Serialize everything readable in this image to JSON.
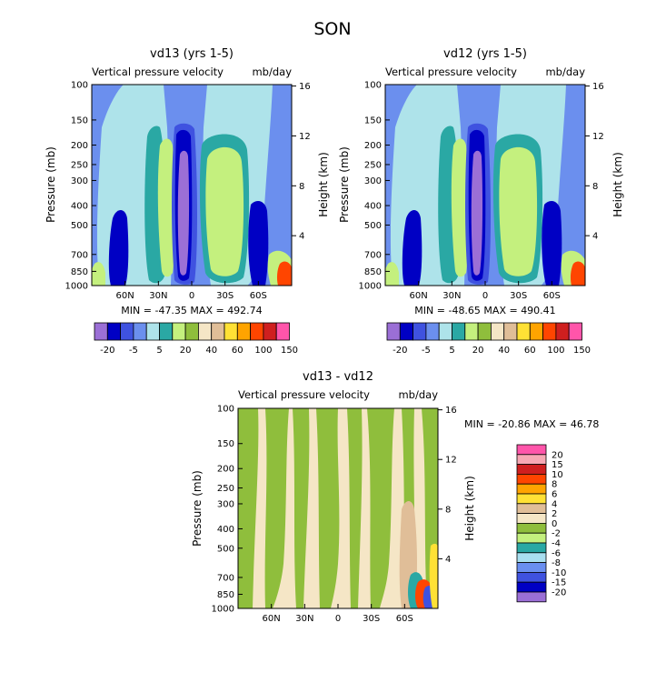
{
  "figure_title": "SON",
  "colors": {
    "cb_main": [
      "#9b6fd6",
      "#0000c4",
      "#3f52e0",
      "#6b8fee",
      "#aee3ea",
      "#2aa8a4",
      "#c4f07e",
      "#8fbe3c",
      "#f5e6c6",
      "#e0be98",
      "#ffe135",
      "#ffa400",
      "#ff4500",
      "#cf1f1f",
      "#ff55aa"
    ],
    "cb_diff": [
      "#9b6fd6",
      "#0000c4",
      "#3f52e0",
      "#6a8ff0",
      "#a9dff0",
      "#2aa8a4",
      "#c4f07e",
      "#8fbe3c",
      "#f5e6c6",
      "#e0be98",
      "#ffe135",
      "#ffa400",
      "#ff4500",
      "#cf1f1f",
      "#f7a8b4",
      "#ff55aa"
    ]
  },
  "chart_data": [
    {
      "type": "heatmap",
      "id": "vd13",
      "title": "vd13 (yrs 1-5)",
      "subtitle_left": "Vertical pressure velocity",
      "subtitle_right": "mb/day",
      "ylabel": "Pressure (mb)",
      "ylabel_right": "Height (km)",
      "yticks": [
        "100",
        "150",
        "200",
        "250",
        "300",
        "400",
        "500",
        "700",
        "850",
        "1000"
      ],
      "ylim": [
        1000,
        100
      ],
      "xticks": [
        "60N",
        "30N",
        "0",
        "30S",
        "60S"
      ],
      "height_ticks": [
        "16",
        "12",
        "8",
        "4"
      ],
      "minmax_text": "MIN = -47.35   MAX = 492.74",
      "colorbar_labels": [
        "-20",
        "-5",
        "5",
        "20",
        "40",
        "60",
        "100",
        "150"
      ]
    },
    {
      "type": "heatmap",
      "id": "vd12",
      "title": "vd12 (yrs 1-5)",
      "subtitle_left": "Vertical pressure velocity",
      "subtitle_right": "mb/day",
      "ylabel": "Pressure (mb)",
      "ylabel_right": "Height (km)",
      "yticks": [
        "100",
        "150",
        "200",
        "250",
        "300",
        "400",
        "500",
        "700",
        "850",
        "1000"
      ],
      "ylim": [
        1000,
        100
      ],
      "xticks": [
        "60N",
        "30N",
        "0",
        "30S",
        "60S"
      ],
      "height_ticks": [
        "16",
        "12",
        "8",
        "4"
      ],
      "minmax_text": "MIN = -48.65   MAX = 490.41",
      "colorbar_labels": [
        "-20",
        "-5",
        "5",
        "20",
        "40",
        "60",
        "100",
        "150"
      ]
    },
    {
      "type": "heatmap",
      "id": "diff",
      "title": "vd13 - vd12",
      "subtitle_left": "Vertical pressure velocity",
      "subtitle_right": "mb/day",
      "ylabel": "Pressure (mb)",
      "ylabel_right": "Height (km)",
      "yticks": [
        "100",
        "150",
        "200",
        "250",
        "300",
        "400",
        "500",
        "700",
        "850",
        "1000"
      ],
      "ylim": [
        1000,
        100
      ],
      "xticks": [
        "60N",
        "30N",
        "0",
        "30S",
        "60S"
      ],
      "height_ticks": [
        "16",
        "12",
        "8",
        "4"
      ],
      "minmax_text": "MIN = -20.86   MAX =  46.78",
      "colorbar_labels": [
        "20",
        "15",
        "10",
        "8",
        "6",
        "4",
        "2",
        "0",
        "-2",
        "-4",
        "-6",
        "-8",
        "-10",
        "-15",
        "-20"
      ]
    }
  ]
}
